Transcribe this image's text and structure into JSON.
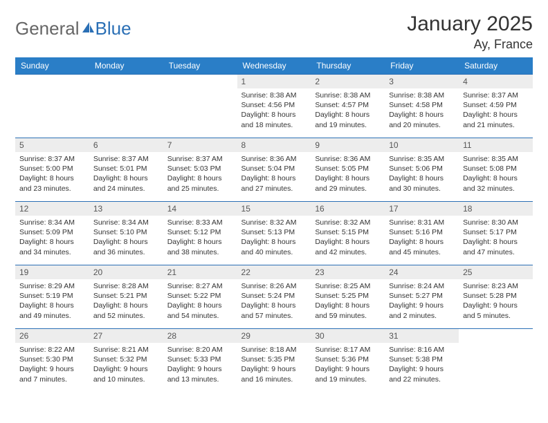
{
  "brand": {
    "part1": "General",
    "part2": "Blue"
  },
  "title": "January 2025",
  "location": "Ay, France",
  "colors": {
    "header_bg": "#2a7ec7",
    "border": "#2a6fb5",
    "daynum_bg": "#ededed",
    "text": "#333333"
  },
  "day_headers": [
    "Sunday",
    "Monday",
    "Tuesday",
    "Wednesday",
    "Thursday",
    "Friday",
    "Saturday"
  ],
  "weeks": [
    [
      {
        "empty": true
      },
      {
        "empty": true
      },
      {
        "empty": true
      },
      {
        "n": "1",
        "sr": "8:38 AM",
        "ss": "4:56 PM",
        "dl": "8 hours and 18 minutes."
      },
      {
        "n": "2",
        "sr": "8:38 AM",
        "ss": "4:57 PM",
        "dl": "8 hours and 19 minutes."
      },
      {
        "n": "3",
        "sr": "8:38 AM",
        "ss": "4:58 PM",
        "dl": "8 hours and 20 minutes."
      },
      {
        "n": "4",
        "sr": "8:37 AM",
        "ss": "4:59 PM",
        "dl": "8 hours and 21 minutes."
      }
    ],
    [
      {
        "n": "5",
        "sr": "8:37 AM",
        "ss": "5:00 PM",
        "dl": "8 hours and 23 minutes."
      },
      {
        "n": "6",
        "sr": "8:37 AM",
        "ss": "5:01 PM",
        "dl": "8 hours and 24 minutes."
      },
      {
        "n": "7",
        "sr": "8:37 AM",
        "ss": "5:03 PM",
        "dl": "8 hours and 25 minutes."
      },
      {
        "n": "8",
        "sr": "8:36 AM",
        "ss": "5:04 PM",
        "dl": "8 hours and 27 minutes."
      },
      {
        "n": "9",
        "sr": "8:36 AM",
        "ss": "5:05 PM",
        "dl": "8 hours and 29 minutes."
      },
      {
        "n": "10",
        "sr": "8:35 AM",
        "ss": "5:06 PM",
        "dl": "8 hours and 30 minutes."
      },
      {
        "n": "11",
        "sr": "8:35 AM",
        "ss": "5:08 PM",
        "dl": "8 hours and 32 minutes."
      }
    ],
    [
      {
        "n": "12",
        "sr": "8:34 AM",
        "ss": "5:09 PM",
        "dl": "8 hours and 34 minutes."
      },
      {
        "n": "13",
        "sr": "8:34 AM",
        "ss": "5:10 PM",
        "dl": "8 hours and 36 minutes."
      },
      {
        "n": "14",
        "sr": "8:33 AM",
        "ss": "5:12 PM",
        "dl": "8 hours and 38 minutes."
      },
      {
        "n": "15",
        "sr": "8:32 AM",
        "ss": "5:13 PM",
        "dl": "8 hours and 40 minutes."
      },
      {
        "n": "16",
        "sr": "8:32 AM",
        "ss": "5:15 PM",
        "dl": "8 hours and 42 minutes."
      },
      {
        "n": "17",
        "sr": "8:31 AM",
        "ss": "5:16 PM",
        "dl": "8 hours and 45 minutes."
      },
      {
        "n": "18",
        "sr": "8:30 AM",
        "ss": "5:17 PM",
        "dl": "8 hours and 47 minutes."
      }
    ],
    [
      {
        "n": "19",
        "sr": "8:29 AM",
        "ss": "5:19 PM",
        "dl": "8 hours and 49 minutes."
      },
      {
        "n": "20",
        "sr": "8:28 AM",
        "ss": "5:21 PM",
        "dl": "8 hours and 52 minutes."
      },
      {
        "n": "21",
        "sr": "8:27 AM",
        "ss": "5:22 PM",
        "dl": "8 hours and 54 minutes."
      },
      {
        "n": "22",
        "sr": "8:26 AM",
        "ss": "5:24 PM",
        "dl": "8 hours and 57 minutes."
      },
      {
        "n": "23",
        "sr": "8:25 AM",
        "ss": "5:25 PM",
        "dl": "8 hours and 59 minutes."
      },
      {
        "n": "24",
        "sr": "8:24 AM",
        "ss": "5:27 PM",
        "dl": "9 hours and 2 minutes."
      },
      {
        "n": "25",
        "sr": "8:23 AM",
        "ss": "5:28 PM",
        "dl": "9 hours and 5 minutes."
      }
    ],
    [
      {
        "n": "26",
        "sr": "8:22 AM",
        "ss": "5:30 PM",
        "dl": "9 hours and 7 minutes."
      },
      {
        "n": "27",
        "sr": "8:21 AM",
        "ss": "5:32 PM",
        "dl": "9 hours and 10 minutes."
      },
      {
        "n": "28",
        "sr": "8:20 AM",
        "ss": "5:33 PM",
        "dl": "9 hours and 13 minutes."
      },
      {
        "n": "29",
        "sr": "8:18 AM",
        "ss": "5:35 PM",
        "dl": "9 hours and 16 minutes."
      },
      {
        "n": "30",
        "sr": "8:17 AM",
        "ss": "5:36 PM",
        "dl": "9 hours and 19 minutes."
      },
      {
        "n": "31",
        "sr": "8:16 AM",
        "ss": "5:38 PM",
        "dl": "9 hours and 22 minutes."
      },
      {
        "empty": true
      }
    ]
  ],
  "labels": {
    "sunrise": "Sunrise:",
    "sunset": "Sunset:",
    "daylight": "Daylight:"
  }
}
